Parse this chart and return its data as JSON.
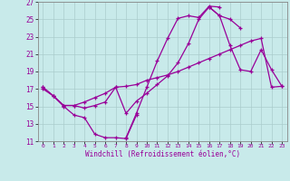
{
  "xlabel": "Windchill (Refroidissement éolien,°C)",
  "bg_color": "#c8eaea",
  "line_color": "#990099",
  "grid_color": "#aacccc",
  "xlim": [
    -0.5,
    23.5
  ],
  "ylim": [
    11,
    27
  ],
  "yticks": [
    11,
    13,
    15,
    17,
    19,
    21,
    23,
    25,
    27
  ],
  "xticks": [
    0,
    1,
    2,
    3,
    4,
    5,
    6,
    7,
    8,
    9,
    10,
    11,
    12,
    13,
    14,
    15,
    16,
    17,
    18,
    19,
    20,
    21,
    22,
    23
  ],
  "series": [
    [
      17.0,
      16.2,
      15.0,
      14.0,
      13.7,
      11.8,
      11.4,
      11.4,
      11.3,
      14.0,
      null,
      null,
      null,
      null,
      null,
      null,
      null,
      null,
      null,
      null,
      null,
      null,
      null,
      null
    ],
    [
      null,
      null,
      null,
      null,
      null,
      null,
      null,
      null,
      11.4,
      14.2,
      17.2,
      20.2,
      22.8,
      25.1,
      25.4,
      25.2,
      26.5,
      26.4,
      null,
      null,
      null,
      null,
      null,
      null
    ],
    [
      17.2,
      16.2,
      15.1,
      15.1,
      14.8,
      15.1,
      15.5,
      17.2,
      14.2,
      15.6,
      16.5,
      17.5,
      18.5,
      20.0,
      22.2,
      25.0,
      26.4,
      25.4,
      25.0,
      24.0,
      null,
      null,
      null,
      null
    ],
    [
      17.2,
      16.2,
      15.1,
      15.1,
      15.5,
      16.0,
      16.5,
      17.2,
      17.3,
      17.5,
      18.0,
      18.3,
      18.6,
      19.0,
      19.5,
      20.0,
      20.5,
      21.0,
      21.5,
      22.0,
      22.5,
      22.8,
      17.2,
      17.3
    ],
    [
      null,
      null,
      null,
      null,
      null,
      null,
      null,
      null,
      null,
      null,
      null,
      null,
      null,
      null,
      null,
      null,
      26.4,
      25.4,
      22.0,
      19.2,
      19.0,
      21.5,
      19.2,
      17.3
    ]
  ]
}
